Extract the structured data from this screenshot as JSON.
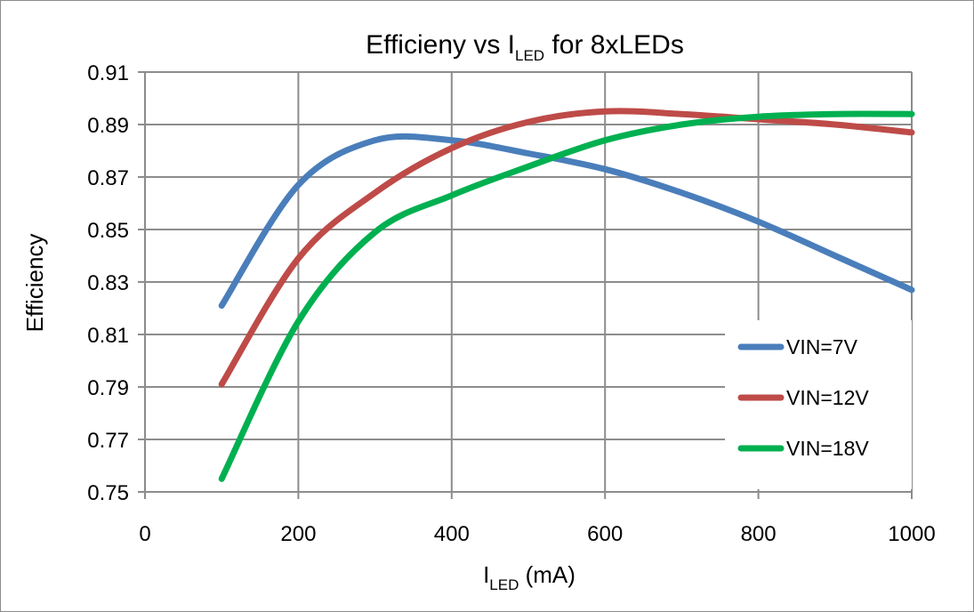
{
  "chart_data": {
    "type": "line",
    "title": {
      "main": "Efficieny vs I",
      "subscript": "LED",
      "suffix": " for 8xLEDs"
    },
    "xlabel": {
      "main": "I",
      "subscript": "LED",
      "suffix": " (mA)"
    },
    "ylabel": "Efficiency",
    "xlim": [
      0,
      1000
    ],
    "ylim": [
      0.75,
      0.91
    ],
    "xticks": [
      0,
      200,
      400,
      600,
      800,
      1000
    ],
    "xtick_labels": [
      "0",
      "200",
      "400",
      "600",
      "800",
      "1000"
    ],
    "yticks": [
      0.75,
      0.77,
      0.79,
      0.81,
      0.83,
      0.85,
      0.87,
      0.89,
      0.91
    ],
    "ytick_labels": [
      "0.75",
      "0.77",
      "0.79",
      "0.81",
      "0.83",
      "0.85",
      "0.87",
      "0.89",
      "0.91"
    ],
    "grid": true,
    "legend_position": "lower-right",
    "series": [
      {
        "name": "VIN=7V",
        "color": "#4a7ebb",
        "x": [
          100,
          200,
          300,
          400,
          500,
          600,
          700,
          800,
          900,
          1000
        ],
        "values": [
          0.821,
          0.867,
          0.884,
          0.884,
          0.879,
          0.873,
          0.864,
          0.853,
          0.84,
          0.827
        ]
      },
      {
        "name": "VIN=12V",
        "color": "#be4b48",
        "x": [
          100,
          200,
          300,
          400,
          500,
          600,
          700,
          800,
          900,
          1000
        ],
        "values": [
          0.791,
          0.839,
          0.864,
          0.881,
          0.891,
          0.895,
          0.894,
          0.892,
          0.89,
          0.887
        ]
      },
      {
        "name": "VIN=18V",
        "color": "#00b050",
        "x": [
          100,
          200,
          300,
          400,
          500,
          600,
          700,
          800,
          900,
          1000
        ],
        "values": [
          0.755,
          0.815,
          0.849,
          0.863,
          0.874,
          0.884,
          0.89,
          0.893,
          0.894,
          0.894
        ]
      }
    ]
  }
}
